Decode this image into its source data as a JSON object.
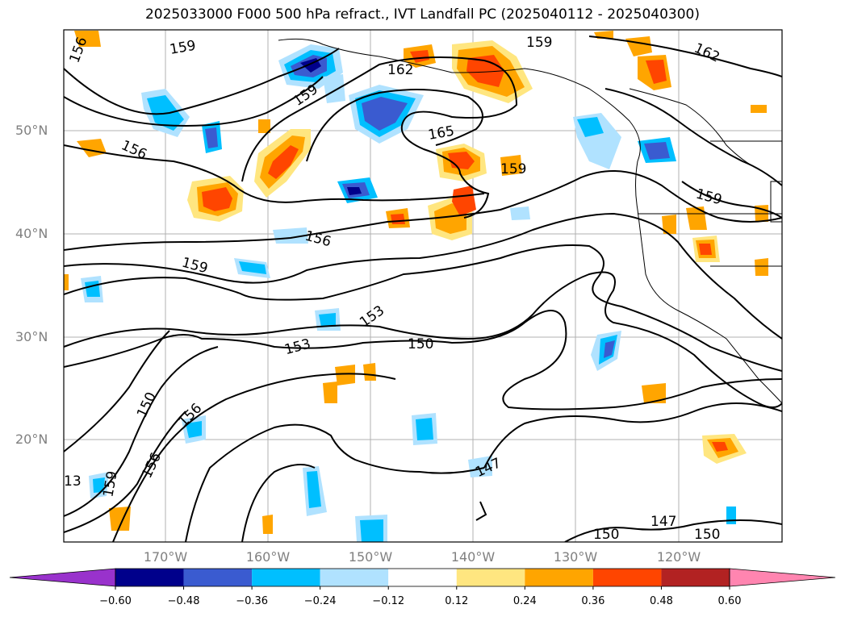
{
  "title": "2025033000 F000 500 hPa refract., IVT Landfall PC (2025040112 - 2025040300)",
  "latitude_labels": [
    "50°N",
    "40°N",
    "30°N",
    "20°N"
  ],
  "longitude_labels": [
    "170°W",
    "160°W",
    "150°W",
    "140°W",
    "130°W",
    "120°W"
  ],
  "contour_labels": [
    "156",
    "159",
    "159",
    "162",
    "165",
    "159",
    "162",
    "156",
    "159",
    "156",
    "159",
    "153",
    "153",
    "150",
    "150",
    "156",
    "156",
    "159",
    "13",
    "147",
    "150",
    "147",
    "150",
    "159"
  ],
  "colorbar": {
    "ticks": [
      "−0.60",
      "−0.48",
      "−0.36",
      "−0.24",
      "−0.12",
      "0.12",
      "0.24",
      "0.36",
      "0.48",
      "0.60"
    ],
    "colors": [
      "#9932cc",
      "#00008b",
      "#3a5bd0",
      "#00bfff",
      "#b0e2ff",
      "#ffffff",
      "#ffe680",
      "#ffa500",
      "#ff4500",
      "#b22222",
      "#ff85b0"
    ]
  }
}
